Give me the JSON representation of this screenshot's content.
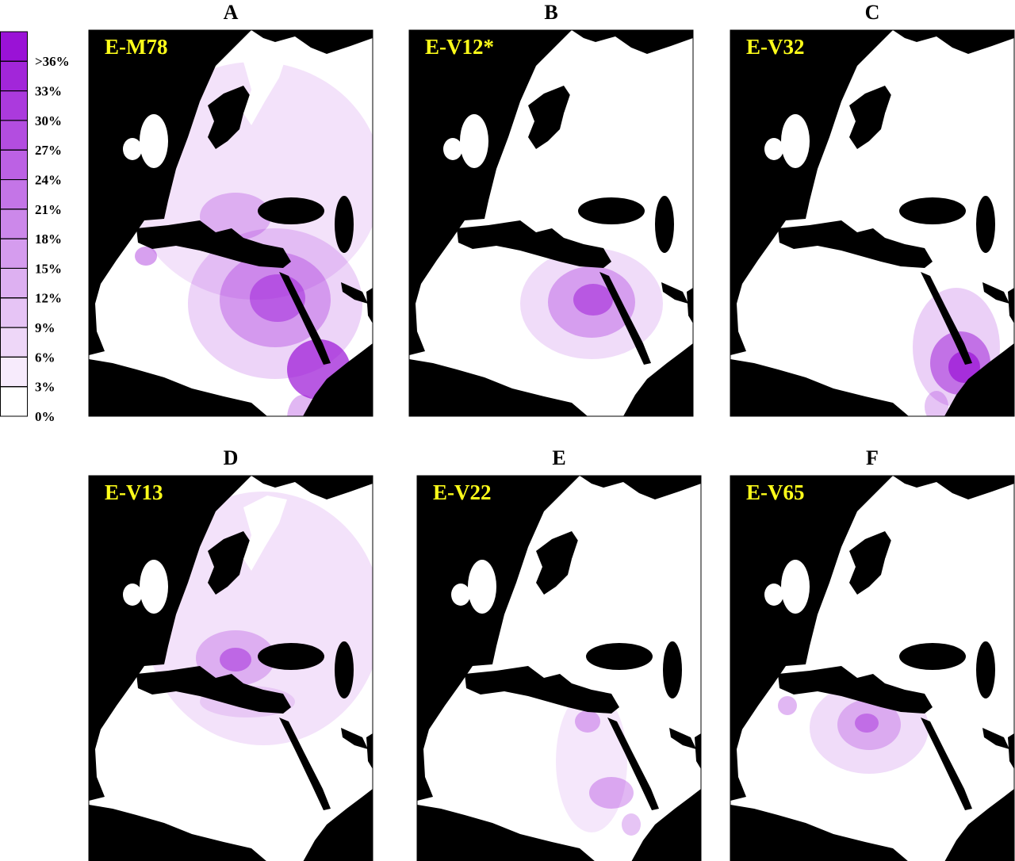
{
  "legend": {
    "labels": [
      ">36%",
      "33%",
      "30%",
      "27%",
      "24%",
      "21%",
      "18%",
      "15%",
      "12%",
      "9%",
      "6%",
      "3%",
      "0%"
    ]
  },
  "panels": [
    {
      "letter": "A",
      "label": "E-M78"
    },
    {
      "letter": "B",
      "label": "E-V12*"
    },
    {
      "letter": "C",
      "label": "E-V32"
    },
    {
      "letter": "D",
      "label": "E-V13"
    },
    {
      "letter": "E",
      "label": "E-V22"
    },
    {
      "letter": "F",
      "label": "E-V65"
    }
  ]
}
